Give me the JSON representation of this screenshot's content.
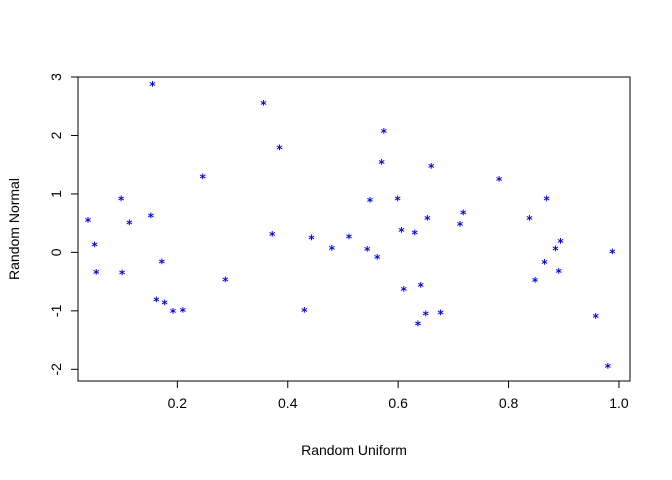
{
  "chart_data": {
    "type": "scatter",
    "title": "",
    "xlabel": "Random Uniform",
    "ylabel": "Random Normal",
    "xlim": [
      0.02,
      1.02
    ],
    "ylim": [
      -2.2,
      3.0
    ],
    "grid": false,
    "x_ticks": [
      0.2,
      0.4,
      0.6,
      0.8,
      1.0
    ],
    "x_tick_labels": [
      "0.2",
      "0.4",
      "0.6",
      "0.8",
      "1.0"
    ],
    "y_ticks": [
      -2,
      -1,
      0,
      1,
      2,
      3
    ],
    "y_tick_labels": [
      "-2",
      "-1",
      "0",
      "1",
      "2",
      "3"
    ],
    "marker": "*",
    "point_color": "#0000FF",
    "series": [
      {
        "points": [
          {
            "x": 0.038,
            "y": 0.52
          },
          {
            "x": 0.05,
            "y": 0.1
          },
          {
            "x": 0.053,
            "y": -0.37
          },
          {
            "x": 0.098,
            "y": 0.89
          },
          {
            "x": 0.1,
            "y": -0.38
          },
          {
            "x": 0.113,
            "y": 0.48
          },
          {
            "x": 0.152,
            "y": 0.6
          },
          {
            "x": 0.155,
            "y": 2.85
          },
          {
            "x": 0.162,
            "y": -0.84
          },
          {
            "x": 0.172,
            "y": -0.19
          },
          {
            "x": 0.177,
            "y": -0.89
          },
          {
            "x": 0.192,
            "y": -1.04
          },
          {
            "x": 0.21,
            "y": -1.02
          },
          {
            "x": 0.246,
            "y": 1.26
          },
          {
            "x": 0.287,
            "y": -0.5
          },
          {
            "x": 0.356,
            "y": 2.52
          },
          {
            "x": 0.372,
            "y": 0.28
          },
          {
            "x": 0.385,
            "y": 1.76
          },
          {
            "x": 0.43,
            "y": -1.02
          },
          {
            "x": 0.443,
            "y": 0.22
          },
          {
            "x": 0.48,
            "y": 0.04
          },
          {
            "x": 0.511,
            "y": 0.24
          },
          {
            "x": 0.544,
            "y": 0.02
          },
          {
            "x": 0.549,
            "y": 0.86
          },
          {
            "x": 0.562,
            "y": -0.11
          },
          {
            "x": 0.57,
            "y": 1.51
          },
          {
            "x": 0.574,
            "y": 2.04
          },
          {
            "x": 0.599,
            "y": 0.89
          },
          {
            "x": 0.606,
            "y": 0.35
          },
          {
            "x": 0.61,
            "y": -0.66
          },
          {
            "x": 0.63,
            "y": 0.31
          },
          {
            "x": 0.636,
            "y": -1.25
          },
          {
            "x": 0.641,
            "y": -0.59
          },
          {
            "x": 0.65,
            "y": -1.08
          },
          {
            "x": 0.653,
            "y": 0.55
          },
          {
            "x": 0.66,
            "y": 1.44
          },
          {
            "x": 0.677,
            "y": -1.06
          },
          {
            "x": 0.712,
            "y": 0.45
          },
          {
            "x": 0.718,
            "y": 0.65
          },
          {
            "x": 0.783,
            "y": 1.22
          },
          {
            "x": 0.838,
            "y": 0.55
          },
          {
            "x": 0.848,
            "y": -0.51
          },
          {
            "x": 0.865,
            "y": -0.2
          },
          {
            "x": 0.869,
            "y": 0.89
          },
          {
            "x": 0.885,
            "y": 0.03
          },
          {
            "x": 0.891,
            "y": -0.35
          },
          {
            "x": 0.894,
            "y": 0.16
          },
          {
            "x": 0.958,
            "y": -1.12
          },
          {
            "x": 0.98,
            "y": -1.98
          },
          {
            "x": 0.988,
            "y": -0.02
          }
        ]
      }
    ]
  }
}
